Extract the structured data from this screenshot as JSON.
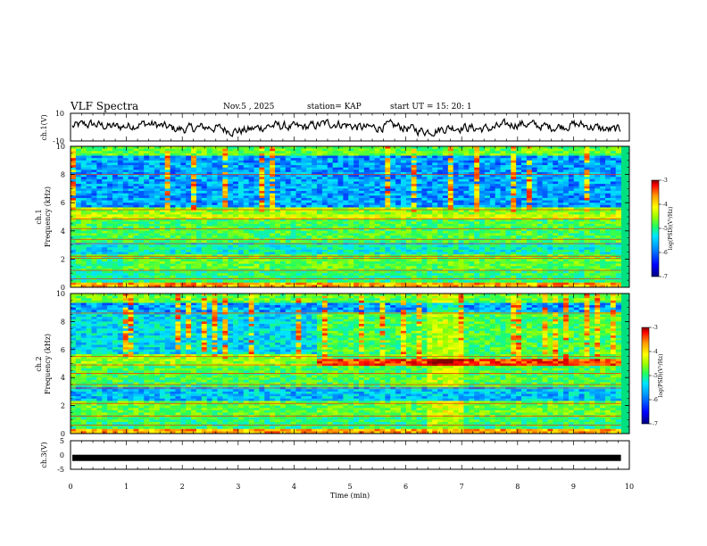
{
  "header": {
    "title": "VLF Spectra",
    "date": "Nov.5  , 2025",
    "station": "station= KAP",
    "start": "start  UT =   15: 20: 1"
  },
  "chart_data": [
    {
      "id": "ch1-waveform",
      "type": "line",
      "ylabel": "ch.1(V)",
      "yticks": [
        "10",
        "-10"
      ],
      "ylim": [
        -10,
        10
      ],
      "xlim": [
        0,
        10
      ]
    },
    {
      "id": "ch1-spectrogram",
      "type": "heatmap",
      "ylabel": "ch.1\nFrequency  (kHz)",
      "ylabel_lines": [
        "ch.1",
        "Frequency  (kHz)"
      ],
      "yticks": [
        "0",
        "2",
        "4",
        "6",
        "8",
        "10"
      ],
      "ylim": [
        0,
        10
      ],
      "xlim": [
        0,
        10
      ],
      "colorbar": {
        "label": "log(PSD)(V²/Hz)",
        "ticks": [
          "-3",
          "-4",
          "-5",
          "-6",
          "-7"
        ],
        "range": [
          -7,
          -3
        ]
      }
    },
    {
      "id": "ch2-spectrogram",
      "type": "heatmap",
      "ylabel_lines": [
        "ch.2",
        "Frequency  (kHz)"
      ],
      "yticks": [
        "0",
        "2",
        "4",
        "6",
        "8",
        "10"
      ],
      "ylim": [
        0,
        10
      ],
      "xlim": [
        0,
        10
      ],
      "colorbar": {
        "label": "log(PSD)(V²/Hz)",
        "ticks": [
          "-3",
          "-4",
          "-5",
          "-6",
          "-7"
        ],
        "range": [
          -7,
          -3
        ]
      }
    },
    {
      "id": "ch3-waveform",
      "type": "line",
      "ylabel": "ch.3(V)",
      "yticks": [
        "5",
        "0",
        "-5"
      ],
      "ylim": [
        -5,
        5
      ],
      "xlim": [
        0,
        10
      ],
      "level": -1
    }
  ],
  "xaxis": {
    "label": "Time  (min)",
    "ticks": [
      "0",
      "1",
      "2",
      "3",
      "4",
      "5",
      "6",
      "7",
      "8",
      "9",
      "10"
    ],
    "range": [
      0,
      10
    ],
    "data_end": 9.85
  },
  "colors": {
    "colormap": [
      "#00007f",
      "#0000ff",
      "#0080ff",
      "#00e5ff",
      "#20ff60",
      "#9bff00",
      "#ffff00",
      "#ff9900",
      "#ff0000",
      "#800000"
    ]
  }
}
